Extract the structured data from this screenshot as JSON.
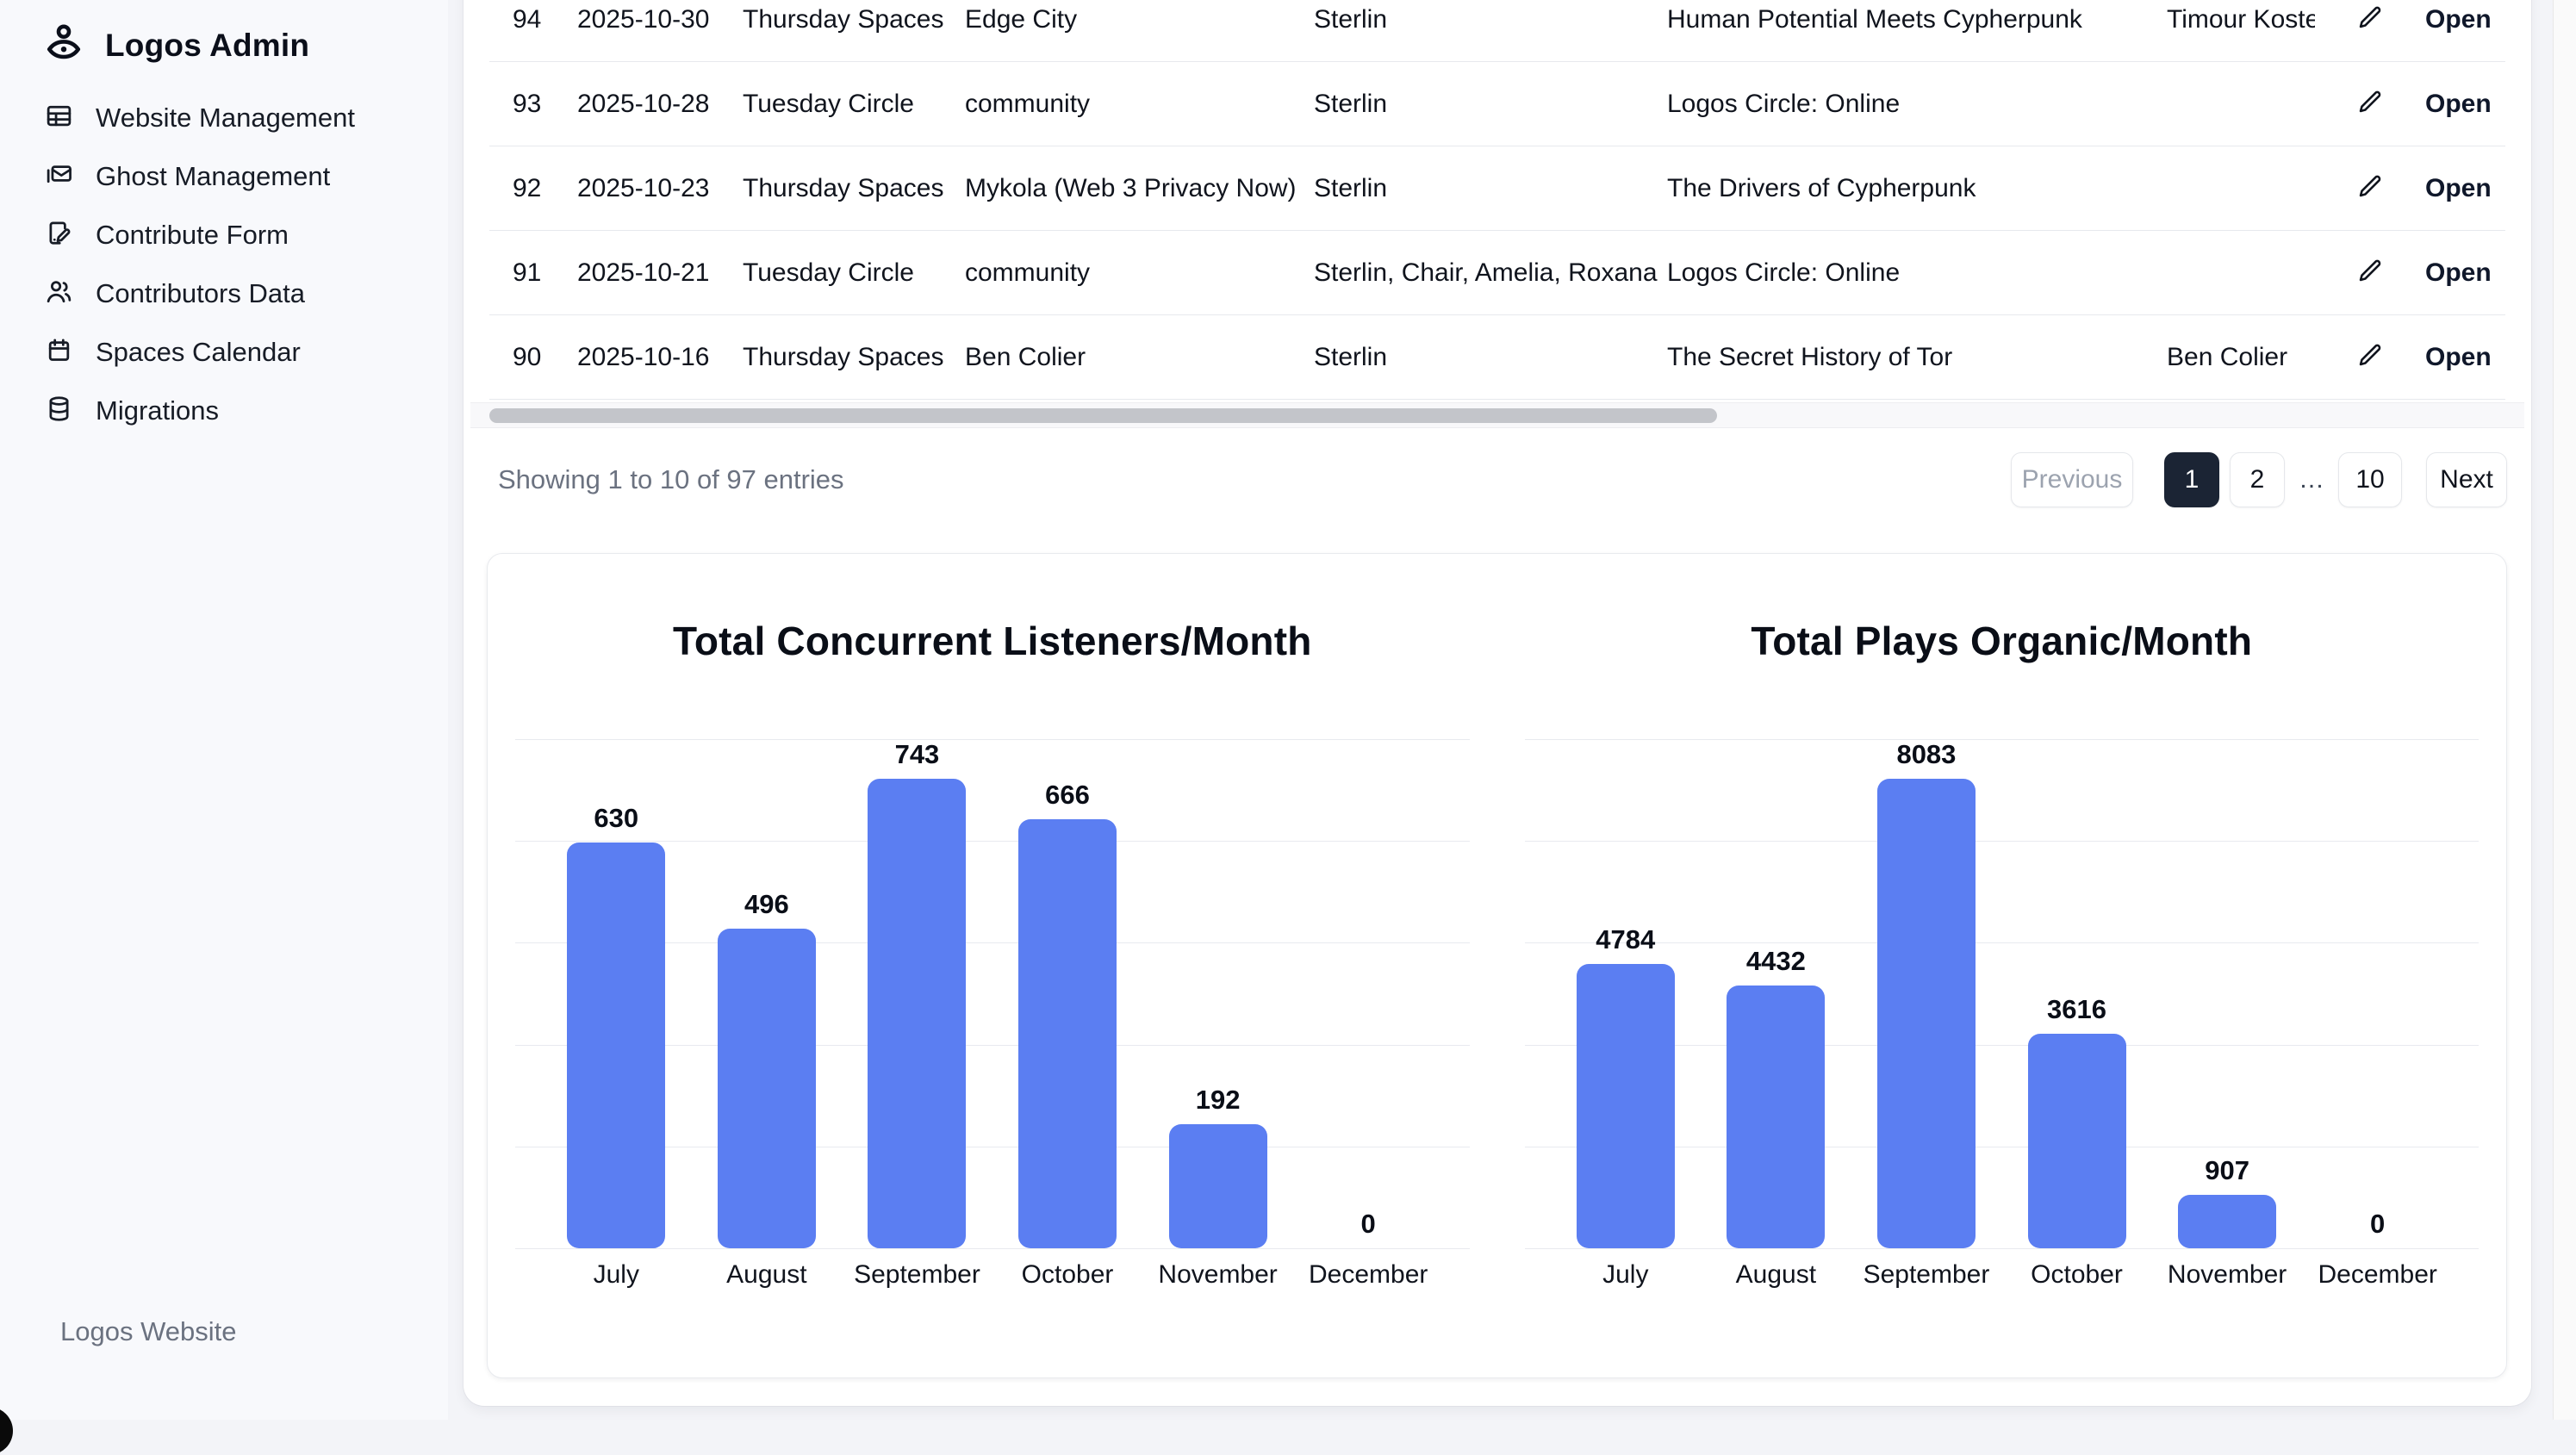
{
  "sidebar": {
    "title": "Logos Admin",
    "items": [
      {
        "label": "Website Management",
        "icon": "table-icon"
      },
      {
        "label": "Ghost Management",
        "icon": "mail-icon"
      },
      {
        "label": "Contribute Form",
        "icon": "file-pen-icon"
      },
      {
        "label": "Contributors Data",
        "icon": "users-icon"
      },
      {
        "label": "Spaces Calendar",
        "icon": "calendar-icon"
      },
      {
        "label": "Migrations",
        "icon": "database-icon"
      }
    ],
    "footer_link": "Logos Website"
  },
  "table": {
    "rows": [
      {
        "id": "94",
        "date": "2025-10-30",
        "type": "Thursday Spaces",
        "name": "Edge City",
        "host": "Sterlin",
        "title": "Human Potential Meets Cypherpunk",
        "guest": "Timour Koster",
        "open_label": "Open"
      },
      {
        "id": "93",
        "date": "2025-10-28",
        "type": "Tuesday Circle",
        "name": "community",
        "host": "Sterlin",
        "title": "Logos Circle: Online",
        "guest": "",
        "open_label": "Open"
      },
      {
        "id": "92",
        "date": "2025-10-23",
        "type": "Thursday Spaces",
        "name": "Mykola (Web 3 Privacy Now)",
        "host": "Sterlin",
        "title": "The Drivers of Cypherpunk",
        "guest": "",
        "open_label": "Open"
      },
      {
        "id": "91",
        "date": "2025-10-21",
        "type": "Tuesday Circle",
        "name": "community",
        "host": "Sterlin, Chair, Amelia, Roxana",
        "title": "Logos Circle: Online",
        "guest": "",
        "open_label": "Open"
      },
      {
        "id": "90",
        "date": "2025-10-16",
        "type": "Thursday Spaces",
        "name": "Ben Colier",
        "host": "Sterlin",
        "title": "The Secret History of Tor",
        "guest": "Ben Colier",
        "open_label": "Open"
      }
    ]
  },
  "pagination": {
    "summary": "Showing 1 to 10 of 97 entries",
    "previous_label": "Previous",
    "pages": [
      "1",
      "2",
      "10"
    ],
    "active_page": "1",
    "ellipsis": "…",
    "next_label": "Next"
  },
  "chart_data": [
    {
      "type": "bar",
      "title": "Total Concurrent Listeners/Month",
      "categories": [
        "July",
        "August",
        "September",
        "October",
        "November",
        "December"
      ],
      "values": [
        630,
        496,
        743,
        666,
        192,
        0
      ],
      "xlabel": "",
      "ylabel": "",
      "ylim": [
        0,
        790
      ],
      "gridline_count": 6,
      "grid": "horizontal",
      "legend": "none",
      "value_labels": true,
      "bar_color": "#5b7ef2"
    },
    {
      "type": "bar",
      "title": "Total Plays Organic/Month",
      "categories": [
        "July",
        "August",
        "September",
        "October",
        "November",
        "December"
      ],
      "values": [
        4784,
        4432,
        8083,
        3616,
        907,
        0
      ],
      "xlabel": "",
      "ylabel": "",
      "ylim": [
        0,
        8580
      ],
      "gridline_count": 6,
      "grid": "horizontal",
      "legend": "none",
      "value_labels": true,
      "bar_color": "#5b7ef2"
    }
  ],
  "colors": {
    "bar_blue": "#5b7ef2",
    "active_page_bg": "#1b2434",
    "muted_text": "#6b7280",
    "border": "#e7e9ed",
    "page_bg": "#f3f4f8"
  }
}
